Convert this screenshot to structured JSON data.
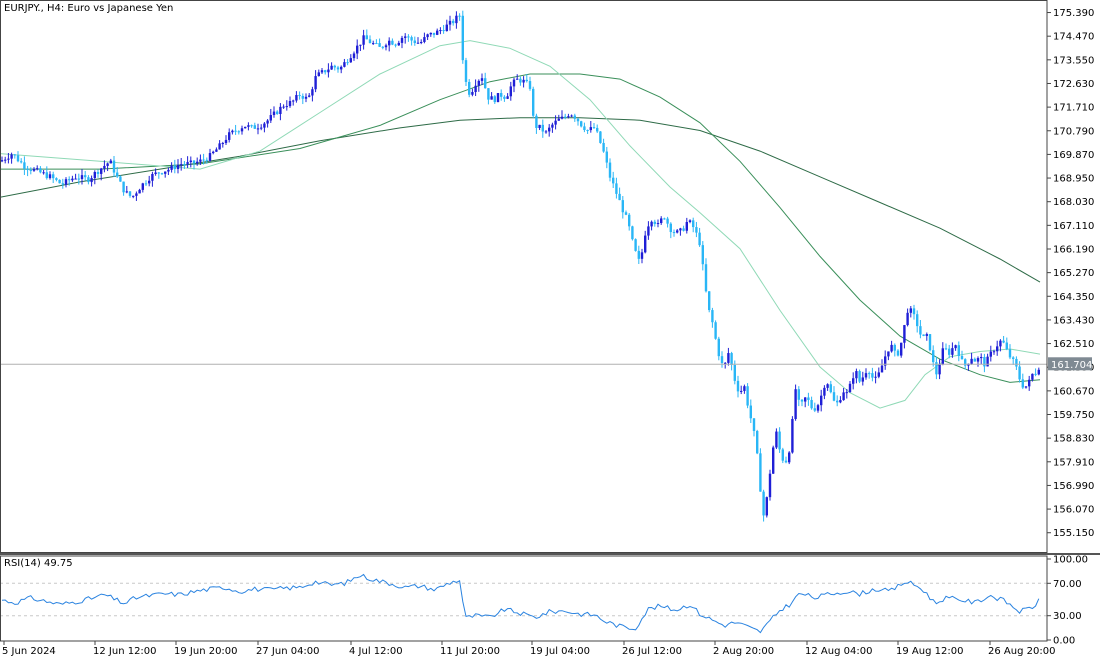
{
  "chart_data": [
    {
      "type": "candlestick",
      "title": "EURJPY., H4:  Euro vs Japanese Yen",
      "ylim": [
        154.4,
        175.8
      ],
      "y_ticks": [
        "175.390",
        "174.470",
        "173.550",
        "172.630",
        "171.710",
        "170.790",
        "169.870",
        "168.950",
        "168.030",
        "167.110",
        "166.190",
        "165.270",
        "164.350",
        "163.430",
        "162.510",
        "161.590",
        "160.670",
        "159.750",
        "158.830",
        "157.910",
        "156.990",
        "156.070",
        "155.150"
      ],
      "x_ticks": [
        "5 Jun 2024",
        "12 Jun 12:00",
        "19 Jun 20:00",
        "27 Jun 04:00",
        "4 Jul 12:00",
        "11 Jul 20:00",
        "19 Jul 04:00",
        "26 Jul 12:00",
        "2 Aug 20:00",
        "12 Aug 04:00",
        "19 Aug 12:00",
        "26 Aug 20:00"
      ],
      "current_price": "161.704",
      "colors": {
        "bull": "#1f1fd6",
        "bear": "#29b6f6",
        "ma_fast": "#8fd9b6",
        "ma_mid": "#3a8f5a",
        "ma_slow": "#2e6b47",
        "price_line": "#b0b0b0",
        "price_tag": "#7f8a93"
      },
      "close_path": [
        [
          0,
          169.6
        ],
        [
          12,
          169.9
        ],
        [
          25,
          169.4
        ],
        [
          38,
          169.2
        ],
        [
          50,
          169.0
        ],
        [
          62,
          168.7
        ],
        [
          75,
          169.0
        ],
        [
          88,
          168.9
        ],
        [
          100,
          169.3
        ],
        [
          110,
          169.6
        ],
        [
          118,
          168.9
        ],
        [
          125,
          168.4
        ],
        [
          132,
          168.2
        ],
        [
          140,
          168.6
        ],
        [
          150,
          169.0
        ],
        [
          160,
          169.2
        ],
        [
          170,
          169.3
        ],
        [
          180,
          169.5
        ],
        [
          190,
          169.5
        ],
        [
          200,
          169.6
        ],
        [
          210,
          169.8
        ],
        [
          220,
          170.2
        ],
        [
          228,
          170.6
        ],
        [
          236,
          170.8
        ],
        [
          244,
          171.0
        ],
        [
          252,
          170.9
        ],
        [
          260,
          171.0
        ],
        [
          268,
          171.2
        ],
        [
          276,
          171.5
        ],
        [
          284,
          171.8
        ],
        [
          292,
          171.9
        ],
        [
          300,
          172.2
        ],
        [
          308,
          172.0
        ],
        [
          316,
          172.9
        ],
        [
          324,
          173.1
        ],
        [
          332,
          173.3
        ],
        [
          340,
          173.2
        ],
        [
          348,
          173.6
        ],
        [
          356,
          174.0
        ],
        [
          364,
          174.4
        ],
        [
          372,
          174.2
        ],
        [
          380,
          174.0
        ],
        [
          388,
          174.3
        ],
        [
          396,
          174.2
        ],
        [
          404,
          174.5
        ],
        [
          412,
          174.3
        ],
        [
          420,
          174.2
        ],
        [
          428,
          174.5
        ],
        [
          436,
          174.6
        ],
        [
          444,
          174.8
        ],
        [
          452,
          175.0
        ],
        [
          460,
          175.3
        ],
        [
          464,
          172.9
        ],
        [
          470,
          172.2
        ],
        [
          476,
          172.7
        ],
        [
          482,
          172.9
        ],
        [
          488,
          172.1
        ],
        [
          494,
          172.0
        ],
        [
          500,
          172.2
        ],
        [
          506,
          172.1
        ],
        [
          512,
          172.6
        ],
        [
          518,
          172.8
        ],
        [
          524,
          172.7
        ],
        [
          530,
          172.5
        ],
        [
          534,
          171.0
        ],
        [
          540,
          170.9
        ],
        [
          546,
          170.7
        ],
        [
          552,
          171.0
        ],
        [
          558,
          171.2
        ],
        [
          564,
          171.3
        ],
        [
          570,
          171.5
        ],
        [
          576,
          171.3
        ],
        [
          582,
          171.0
        ],
        [
          588,
          170.8
        ],
        [
          594,
          170.9
        ],
        [
          598,
          170.6
        ],
        [
          604,
          169.9
        ],
        [
          610,
          169.0
        ],
        [
          616,
          168.4
        ],
        [
          622,
          167.8
        ],
        [
          628,
          167.2
        ],
        [
          634,
          166.2
        ],
        [
          640,
          165.6
        ],
        [
          646,
          167.0
        ],
        [
          652,
          167.4
        ],
        [
          658,
          167.1
        ],
        [
          664,
          167.5
        ],
        [
          670,
          167.0
        ],
        [
          676,
          166.8
        ],
        [
          682,
          166.9
        ],
        [
          688,
          167.3
        ],
        [
          694,
          167.0
        ],
        [
          700,
          166.4
        ],
        [
          704,
          165.1
        ],
        [
          708,
          163.9
        ],
        [
          712,
          163.4
        ],
        [
          716,
          162.6
        ],
        [
          720,
          161.9
        ],
        [
          724,
          161.5
        ],
        [
          728,
          162.2
        ],
        [
          732,
          161.6
        ],
        [
          736,
          160.9
        ],
        [
          740,
          160.6
        ],
        [
          744,
          160.9
        ],
        [
          748,
          160.1
        ],
        [
          752,
          159.4
        ],
        [
          756,
          158.6
        ],
        [
          760,
          157.0
        ],
        [
          764,
          155.7
        ],
        [
          768,
          156.8
        ],
        [
          772,
          158.2
        ],
        [
          776,
          159.1
        ],
        [
          780,
          158.3
        ],
        [
          784,
          157.9
        ],
        [
          788,
          158.0
        ],
        [
          792,
          159.3
        ],
        [
          796,
          160.9
        ],
        [
          800,
          159.9
        ],
        [
          804,
          160.4
        ],
        [
          808,
          160.3
        ],
        [
          812,
          160.0
        ],
        [
          816,
          160.0
        ],
        [
          820,
          160.3
        ],
        [
          824,
          160.9
        ],
        [
          828,
          161.0
        ],
        [
          832,
          160.4
        ],
        [
          836,
          160.1
        ],
        [
          840,
          160.4
        ],
        [
          844,
          160.7
        ],
        [
          848,
          160.5
        ],
        [
          852,
          161.2
        ],
        [
          856,
          161.4
        ],
        [
          860,
          161.0
        ],
        [
          864,
          161.3
        ],
        [
          868,
          161.6
        ],
        [
          872,
          161.2
        ],
        [
          876,
          161.1
        ],
        [
          880,
          161.4
        ],
        [
          884,
          161.9
        ],
        [
          888,
          162.3
        ],
        [
          892,
          162.4
        ],
        [
          896,
          162.0
        ],
        [
          900,
          162.3
        ],
        [
          904,
          163.1
        ],
        [
          908,
          163.9
        ],
        [
          912,
          163.7
        ],
        [
          916,
          163.4
        ],
        [
          920,
          162.9
        ],
        [
          924,
          162.7
        ],
        [
          928,
          162.8
        ],
        [
          932,
          161.9
        ],
        [
          936,
          161.3
        ],
        [
          940,
          161.8
        ],
        [
          944,
          162.4
        ],
        [
          948,
          162.1
        ],
        [
          952,
          162.3
        ],
        [
          956,
          162.5
        ],
        [
          960,
          162.0
        ],
        [
          964,
          161.6
        ],
        [
          968,
          161.8
        ],
        [
          972,
          162.0
        ],
        [
          976,
          161.8
        ],
        [
          980,
          162.0
        ],
        [
          984,
          161.7
        ],
        [
          988,
          161.9
        ],
        [
          992,
          162.2
        ],
        [
          996,
          162.4
        ],
        [
          1000,
          162.6
        ],
        [
          1004,
          162.5
        ],
        [
          1008,
          162.1
        ],
        [
          1012,
          161.9
        ],
        [
          1016,
          161.6
        ],
        [
          1020,
          161.1
        ],
        [
          1024,
          160.8
        ],
        [
          1028,
          160.9
        ],
        [
          1032,
          161.3
        ],
        [
          1036,
          161.4
        ],
        [
          1040,
          161.7
        ]
      ],
      "ma_fast": [
        [
          0,
          169.9
        ],
        [
          100,
          169.6
        ],
        [
          200,
          169.3
        ],
        [
          260,
          170.0
        ],
        [
          320,
          171.5
        ],
        [
          380,
          173.0
        ],
        [
          440,
          174.1
        ],
        [
          470,
          174.3
        ],
        [
          510,
          174.0
        ],
        [
          550,
          173.3
        ],
        [
          590,
          172.0
        ],
        [
          630,
          170.2
        ],
        [
          670,
          168.6
        ],
        [
          700,
          167.6
        ],
        [
          740,
          166.2
        ],
        [
          780,
          163.8
        ],
        [
          820,
          161.6
        ],
        [
          850,
          160.6
        ],
        [
          880,
          160.0
        ],
        [
          905,
          160.3
        ],
        [
          925,
          161.3
        ],
        [
          950,
          162.0
        ],
        [
          980,
          162.2
        ],
        [
          1010,
          162.3
        ],
        [
          1040,
          162.1
        ]
      ],
      "ma_mid": [
        [
          0,
          169.3
        ],
        [
          100,
          169.3
        ],
        [
          200,
          169.5
        ],
        [
          300,
          170.1
        ],
        [
          380,
          171.0
        ],
        [
          440,
          172.0
        ],
        [
          490,
          172.7
        ],
        [
          530,
          173.0
        ],
        [
          580,
          173.0
        ],
        [
          620,
          172.8
        ],
        [
          660,
          172.1
        ],
        [
          700,
          171.1
        ],
        [
          740,
          169.6
        ],
        [
          780,
          167.8
        ],
        [
          820,
          165.9
        ],
        [
          860,
          164.2
        ],
        [
          900,
          162.8
        ],
        [
          940,
          161.9
        ],
        [
          980,
          161.3
        ],
        [
          1010,
          161.0
        ],
        [
          1040,
          161.1
        ]
      ],
      "ma_slow": [
        [
          0,
          168.2
        ],
        [
          80,
          168.8
        ],
        [
          160,
          169.3
        ],
        [
          240,
          169.8
        ],
        [
          320,
          170.4
        ],
        [
          400,
          170.9
        ],
        [
          460,
          171.2
        ],
        [
          520,
          171.3
        ],
        [
          580,
          171.3
        ],
        [
          640,
          171.2
        ],
        [
          700,
          170.8
        ],
        [
          760,
          170.0
        ],
        [
          820,
          169.0
        ],
        [
          880,
          168.0
        ],
        [
          940,
          167.0
        ],
        [
          1000,
          165.8
        ],
        [
          1040,
          164.9
        ]
      ]
    },
    {
      "type": "line",
      "title": "RSI(14) 49.75",
      "ylim": [
        0,
        100
      ],
      "y_ticks": [
        "100.00",
        "70.00",
        "30.00",
        "0.00"
      ],
      "levels": [
        70,
        30
      ],
      "color": "#2a83e0",
      "series": [
        [
          0,
          50
        ],
        [
          15,
          46
        ],
        [
          30,
          52
        ],
        [
          45,
          48
        ],
        [
          60,
          44
        ],
        [
          75,
          47
        ],
        [
          90,
          51
        ],
        [
          105,
          56
        ],
        [
          115,
          50
        ],
        [
          125,
          45
        ],
        [
          135,
          52
        ],
        [
          150,
          55
        ],
        [
          165,
          57
        ],
        [
          180,
          56
        ],
        [
          195,
          60
        ],
        [
          210,
          63
        ],
        [
          225,
          65
        ],
        [
          240,
          60
        ],
        [
          255,
          63
        ],
        [
          270,
          62
        ],
        [
          285,
          64
        ],
        [
          300,
          65
        ],
        [
          315,
          72
        ],
        [
          330,
          68
        ],
        [
          345,
          70
        ],
        [
          360,
          80
        ],
        [
          375,
          74
        ],
        [
          390,
          70
        ],
        [
          405,
          65
        ],
        [
          420,
          67
        ],
        [
          435,
          62
        ],
        [
          450,
          71
        ],
        [
          460,
          74
        ],
        [
          465,
          27
        ],
        [
          475,
          30
        ],
        [
          490,
          28
        ],
        [
          505,
          38
        ],
        [
          520,
          33
        ],
        [
          535,
          28
        ],
        [
          550,
          35
        ],
        [
          565,
          36
        ],
        [
          580,
          32
        ],
        [
          595,
          31
        ],
        [
          605,
          23
        ],
        [
          620,
          17
        ],
        [
          635,
          14
        ],
        [
          648,
          38
        ],
        [
          660,
          42
        ],
        [
          675,
          37
        ],
        [
          690,
          44
        ],
        [
          700,
          32
        ],
        [
          712,
          25
        ],
        [
          724,
          18
        ],
        [
          736,
          22
        ],
        [
          748,
          16
        ],
        [
          760,
          10
        ],
        [
          770,
          23
        ],
        [
          780,
          37
        ],
        [
          790,
          44
        ],
        [
          800,
          58
        ],
        [
          815,
          52
        ],
        [
          830,
          57
        ],
        [
          845,
          60
        ],
        [
          860,
          57
        ],
        [
          875,
          63
        ],
        [
          890,
          60
        ],
        [
          905,
          72
        ],
        [
          915,
          68
        ],
        [
          925,
          60
        ],
        [
          935,
          45
        ],
        [
          945,
          52
        ],
        [
          960,
          50
        ],
        [
          975,
          46
        ],
        [
          990,
          55
        ],
        [
          1005,
          48
        ],
        [
          1020,
          35
        ],
        [
          1032,
          40
        ],
        [
          1040,
          49.75
        ]
      ]
    }
  ]
}
